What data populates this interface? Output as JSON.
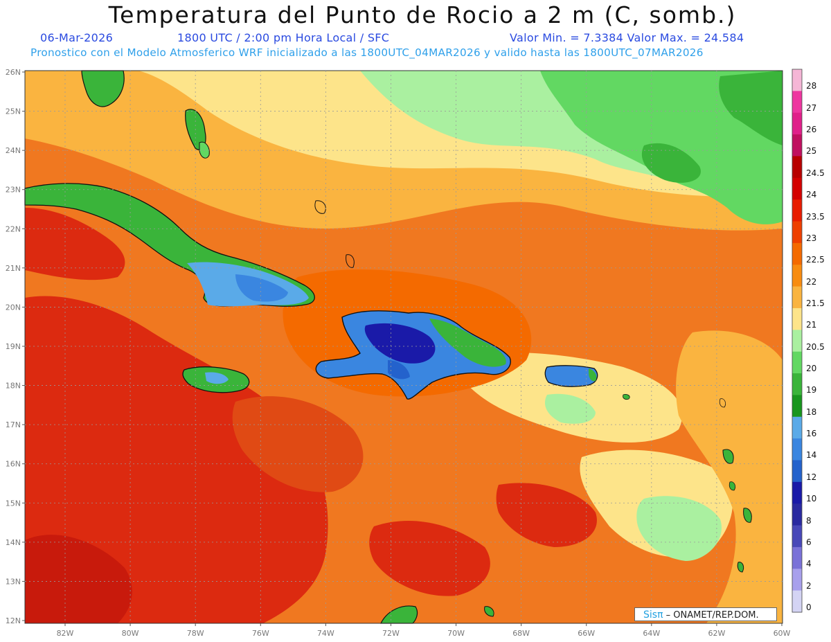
{
  "header": {
    "title": "Temperatura del Punto de Rocio a 2 m (C, somb.)",
    "date": "06-Mar-2026",
    "time": "1800 UTC / 2:00 pm Hora Local / SFC",
    "minmax": "Valor Min. = 7.3384  Valor Max. = 24.584",
    "model": "Pronostico con el Modelo Atmosferico WRF inicializado a las 1800UTC_04MAR2026 y valido hasta las  1800UTC_07MAR2026"
  },
  "lat_labels": [
    "26N",
    "25N",
    "24N",
    "23N",
    "22N",
    "21N",
    "20N",
    "19N",
    "18N",
    "17N",
    "16N",
    "15N",
    "14N",
    "13N",
    "12N"
  ],
  "lon_labels": [
    "82W",
    "80W",
    "78W",
    "76W",
    "74W",
    "72W",
    "70W",
    "68W",
    "66W",
    "64W",
    "62W",
    "60W"
  ],
  "colorbar": {
    "labels": [
      "28",
      "27",
      "26",
      "25",
      "24.5",
      "24",
      "23.5",
      "23",
      "22.5",
      "22",
      "21.5",
      "21",
      "20.5",
      "20",
      "19",
      "18",
      "16",
      "14",
      "12",
      "10",
      "8",
      "6",
      "4",
      "2",
      "0"
    ],
    "colors": [
      "#f5b6d6",
      "#ee36a0",
      "#e0208a",
      "#c01060",
      "#b80000",
      "#d40000",
      "#e81c00",
      "#ee4000",
      "#f46a00",
      "#f88c10",
      "#fab440",
      "#fde48a",
      "#aaf0a0",
      "#62d862",
      "#3ab43a",
      "#18961e",
      "#5aaae8",
      "#3a86e0",
      "#2462cc",
      "#1a1aa8",
      "#2a2aa0",
      "#4848b8",
      "#7a72d8",
      "#a8a0ec",
      "#d4d4f4"
    ]
  },
  "colors": {
    "ocean_warm": "#f07820",
    "ocean_hot": "#dc2a10",
    "moist_green": "#4ad24a",
    "dry_blue": "#3a86e0"
  },
  "footer": {
    "logo": "Sisπ",
    "text": "– ONAMET/REP.DOM."
  }
}
